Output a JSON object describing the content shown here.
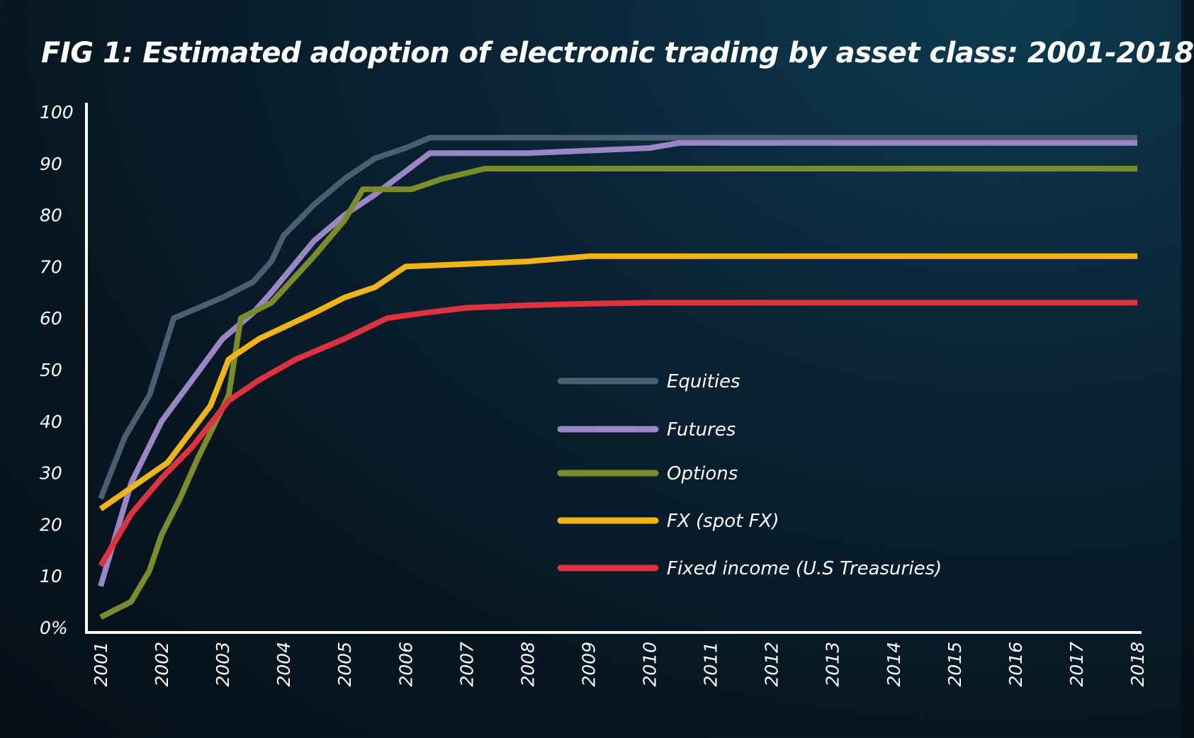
{
  "chart_data": {
    "type": "line",
    "title": "FIG 1: Estimated adoption of electronic trading by asset class: 2001-2018",
    "xlabel": "",
    "ylabel": "",
    "x": [
      2001,
      2002,
      2003,
      2004,
      2005,
      2006,
      2007,
      2008,
      2009,
      2010,
      2011,
      2012,
      2013,
      2014,
      2015,
      2016,
      2017,
      2018
    ],
    "x_tick_labels": [
      "2001",
      "2002",
      "2003",
      "2004",
      "2005",
      "2006",
      "2007",
      "2008",
      "2009",
      "2010",
      "2011",
      "2012",
      "2013",
      "2014",
      "2015",
      "2016",
      "2017",
      "2018"
    ],
    "y_ticks": [
      0,
      10,
      20,
      30,
      40,
      50,
      60,
      70,
      80,
      90,
      100
    ],
    "y_tick_labels": [
      "0%",
      "10",
      "20",
      "30",
      "40",
      "50",
      "60",
      "70",
      "80",
      "90",
      "100"
    ],
    "ylim": [
      0,
      100
    ],
    "xlim": [
      2001,
      2018
    ],
    "grid": false,
    "legend_position": "center-right",
    "series": [
      {
        "name": "Equities",
        "color": "#4a5f72",
        "points": [
          [
            2001,
            25
          ],
          [
            2001.4,
            37
          ],
          [
            2001.8,
            45
          ],
          [
            2002.2,
            60
          ],
          [
            2003,
            64
          ],
          [
            2003.5,
            67
          ],
          [
            2003.8,
            71
          ],
          [
            2004,
            76
          ],
          [
            2004.5,
            82
          ],
          [
            2005,
            87
          ],
          [
            2005.5,
            91
          ],
          [
            2006,
            93
          ],
          [
            2006.4,
            95
          ],
          [
            2007,
            95
          ],
          [
            2018,
            95
          ]
        ]
      },
      {
        "name": "Futures",
        "color": "#9a86c4",
        "points": [
          [
            2001,
            8
          ],
          [
            2001.5,
            28
          ],
          [
            2002,
            40
          ],
          [
            2002.5,
            48
          ],
          [
            2003,
            56
          ],
          [
            2003.5,
            61
          ],
          [
            2003.8,
            65
          ],
          [
            2004.5,
            75
          ],
          [
            2005,
            80
          ],
          [
            2005.5,
            84
          ],
          [
            2006.4,
            92
          ],
          [
            2007,
            92
          ],
          [
            2008,
            92
          ],
          [
            2009,
            92.5
          ],
          [
            2010,
            93
          ],
          [
            2010.5,
            94
          ],
          [
            2018,
            94
          ]
        ]
      },
      {
        "name": "Options",
        "color": "#7d8c2a",
        "points": [
          [
            2001,
            2
          ],
          [
            2001.5,
            5
          ],
          [
            2001.8,
            11
          ],
          [
            2002,
            18
          ],
          [
            2002.3,
            25
          ],
          [
            2002.6,
            33
          ],
          [
            2003.1,
            45
          ],
          [
            2003.3,
            60
          ],
          [
            2003.8,
            63
          ],
          [
            2004.5,
            72
          ],
          [
            2005,
            79
          ],
          [
            2005.3,
            85
          ],
          [
            2006.1,
            85
          ],
          [
            2006.6,
            87
          ],
          [
            2007.3,
            89
          ],
          [
            2018,
            89
          ]
        ]
      },
      {
        "name": "FX (spot FX)",
        "color": "#f0b414",
        "points": [
          [
            2001,
            23
          ],
          [
            2002.1,
            32
          ],
          [
            2002.8,
            43
          ],
          [
            2003.1,
            52
          ],
          [
            2003.6,
            56
          ],
          [
            2004.5,
            61
          ],
          [
            2005,
            64
          ],
          [
            2005.5,
            66
          ],
          [
            2006,
            70
          ],
          [
            2007,
            70.5
          ],
          [
            2008,
            71
          ],
          [
            2009,
            72
          ],
          [
            2018,
            72
          ]
        ]
      },
      {
        "name": "Fixed income (U.S Treasuries)",
        "color": "#e0313f",
        "points": [
          [
            2001,
            12
          ],
          [
            2001.5,
            22
          ],
          [
            2002,
            29
          ],
          [
            2002.5,
            35
          ],
          [
            2003.1,
            44
          ],
          [
            2003.6,
            48
          ],
          [
            2004.2,
            52
          ],
          [
            2005,
            56
          ],
          [
            2005.7,
            60
          ],
          [
            2006.3,
            61
          ],
          [
            2007,
            62
          ],
          [
            2008,
            62.5
          ],
          [
            2009,
            62.8
          ],
          [
            2010,
            63
          ],
          [
            2018,
            63
          ]
        ]
      }
    ]
  }
}
